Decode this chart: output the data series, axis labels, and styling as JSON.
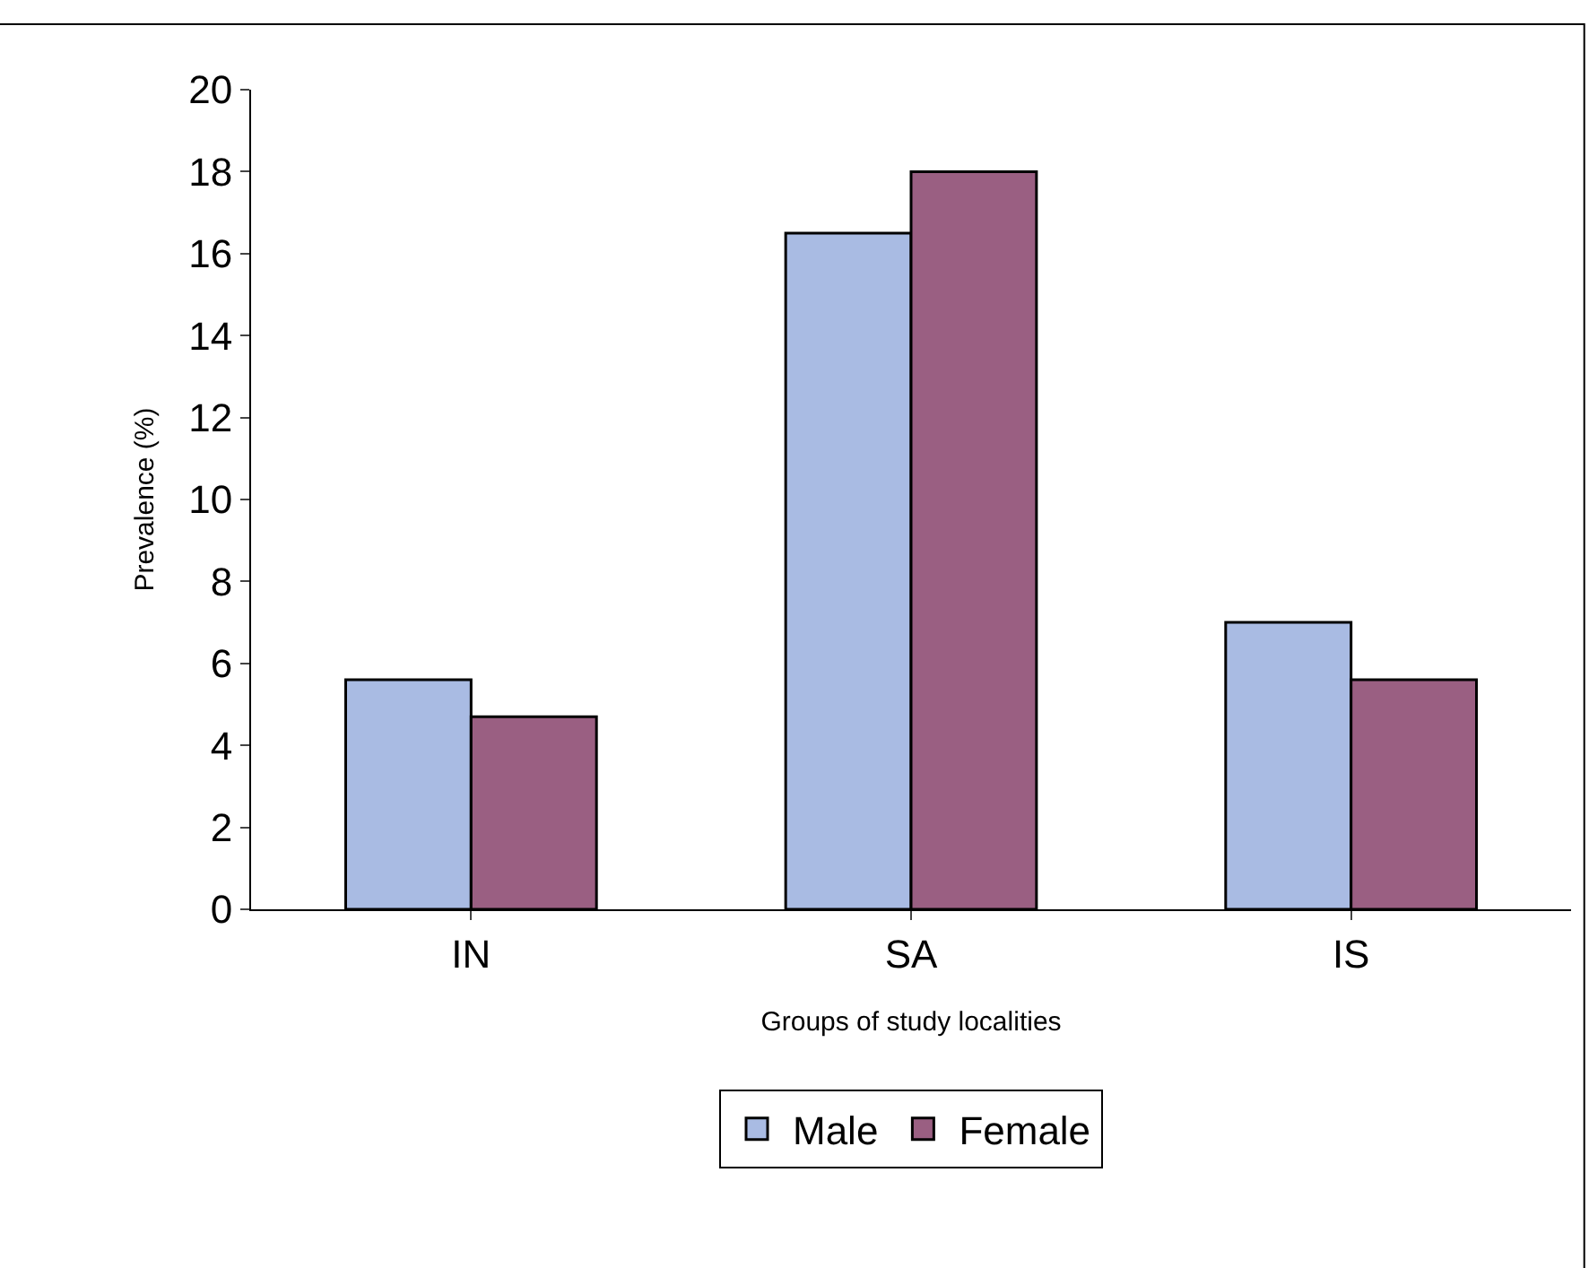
{
  "chart_data": {
    "type": "bar",
    "xlabel": "Groups of study localities",
    "ylabel": "Prevalence (%)",
    "categories": [
      "IN",
      "SA",
      "IS"
    ],
    "series": [
      {
        "name": "Male",
        "color": "#a9bbe3",
        "values": [
          5.6,
          16.5,
          7.0
        ]
      },
      {
        "name": "Female",
        "color": "#9a5f82",
        "values": [
          4.7,
          18.0,
          5.6
        ]
      }
    ],
    "ylim": [
      0,
      20
    ],
    "yticks": [
      0,
      2,
      4,
      6,
      8,
      10,
      12,
      14,
      16,
      18,
      20
    ],
    "grid": false,
    "legend": "bottom"
  }
}
